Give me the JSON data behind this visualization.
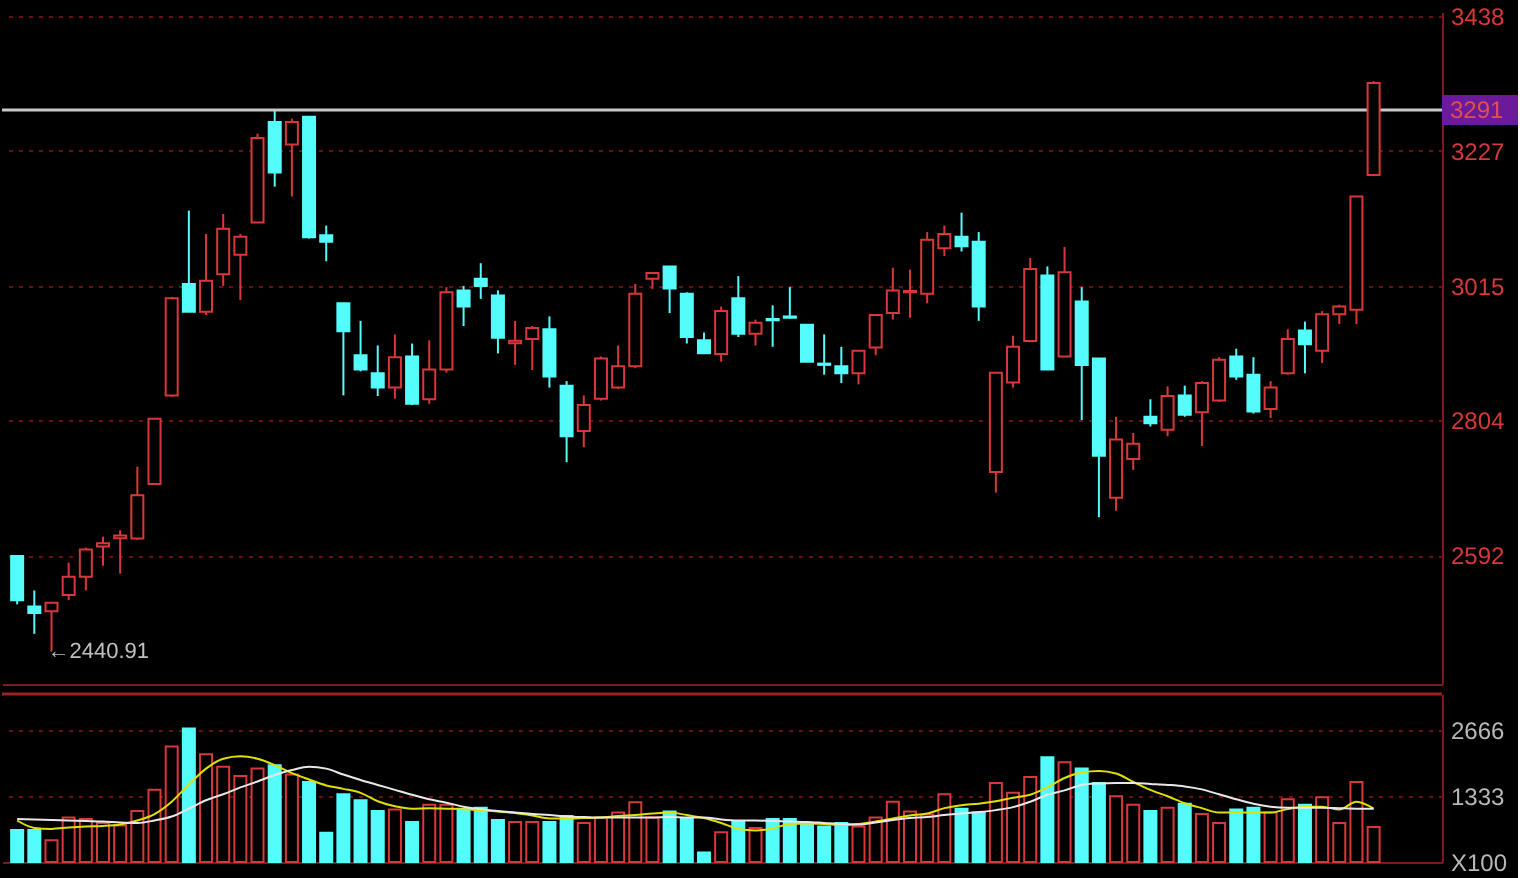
{
  "chart_data": [
    {
      "type": "candlestick",
      "categories": [
        null,
        null,
        null,
        null,
        null,
        null,
        null,
        null,
        null,
        null,
        null,
        null,
        null,
        null,
        null,
        null,
        null,
        null,
        null,
        null,
        null,
        null,
        null,
        null,
        null,
        null,
        null,
        null,
        null,
        null,
        null,
        null,
        null,
        null,
        null,
        null,
        null,
        null,
        null,
        null,
        null,
        null,
        null,
        null,
        null,
        null,
        null,
        null,
        null,
        null,
        null,
        null,
        null,
        null,
        null,
        null,
        null,
        null,
        null,
        null,
        null,
        null,
        null,
        null,
        null,
        null,
        null,
        null,
        null,
        null,
        null,
        null,
        null,
        null,
        null,
        null,
        null,
        null,
        null,
        null
      ],
      "ohlc": [
        [
          2590.8,
          2591,
          2515,
          2521.6
        ],
        [
          2511.5,
          2536.9,
          2468.8,
          2501.3
        ],
        [
          2504.3,
          2518,
          2440.91,
          2517.6
        ],
        [
          2529.8,
          2580.7,
          2521.6,
          2558.3
        ],
        [
          2558.3,
          2604.1,
          2536.9,
          2601.0
        ],
        [
          2606,
          2621.4,
          2575.6,
          2611
        ],
        [
          2619,
          2631.5,
          2563.3,
          2623
        ],
        [
          2618.3,
          2731.2,
          2616.3,
          2686.5
        ],
        [
          2703.8,
          2807,
          2703,
          2806.5
        ],
        [
          2843.1,
          2997.8,
          2841.1,
          2995.7
        ],
        [
          3018.1,
          3133.1,
          2974,
          2974.3
        ],
        [
          2974.3,
          3096.4,
          2969.3,
          3023.2
        ],
        [
          3033.3,
          3128,
          3015,
          3104.6
        ],
        [
          3063.9,
          3096.4,
          2992.7,
          3092.3
        ],
        [
          3114.7,
          3254.1,
          3114.7,
          3247
        ],
        [
          3272.4,
          3289.7,
          3170.7,
          3193.1
        ],
        [
          3236.8,
          3277.5,
          3155.4,
          3272.4
        ],
        [
          3280.6,
          3281,
          3089.3,
          3091.3
        ],
        [
          3094.4,
          3109.7,
          3053.7,
          3084.2
        ],
        [
          2987.6,
          2988,
          2843.1,
          2943.8
        ],
        [
          2906.2,
          2960.1,
          2880.8,
          2883.8
        ],
        [
          2877.7,
          2921.5,
          2842.1,
          2855.3
        ],
        [
          2855.3,
          2938.8,
          2838,
          2903.1
        ],
        [
          2904.2,
          2924.5,
          2827.9,
          2829.9
        ],
        [
          2837,
          2929.6,
          2829.9,
          2883.8
        ],
        [
          2883.8,
          3013,
          2878.7,
          3004.9
        ],
        [
          3007.9,
          3015,
          2952,
          2982.5
        ],
        [
          3026.2,
          3050.6,
          2994.7,
          3015
        ],
        [
          3000,
          3008,
          2909,
          2933.7
        ],
        [
          2925,
          2960.1,
          2891,
          2929
        ],
        [
          2931.6,
          2952,
          2883,
          2948.9
        ],
        [
          2946.9,
          2967.2,
          2855.3,
          2872.6
        ],
        [
          2858.4,
          2865.5,
          2738.3,
          2779
        ],
        [
          2787.2,
          2843.1,
          2761.8,
          2827.9
        ],
        [
          2838,
          2904.2,
          2835,
          2901.1
        ],
        [
          2855.3,
          2921.5,
          2853.3,
          2888.9
        ],
        [
          2888.9,
          3018.1,
          2885.8,
          3002.8
        ],
        [
          3026.2,
          3035.4,
          3010,
          3035.4
        ],
        [
          3045.6,
          3045.6,
          2972.3,
          3011
        ],
        [
          3002.8,
          3004.9,
          2924.5,
          2934.7
        ],
        [
          2929.6,
          2941.8,
          2909,
          2909.2
        ],
        [
          2908.2,
          2982.5,
          2896,
          2975.4
        ],
        [
          2995.7,
          3030.3,
          2934.7,
          2939.8
        ],
        [
          2939.8,
          2962.1,
          2921.5,
          2957.1
        ],
        [
          2963,
          2984.5,
          2919.4,
          2961
        ],
        [
          2967,
          3013,
          2964,
          2965
        ],
        [
          2954,
          2954,
          2896,
          2896
        ],
        [
          2893,
          2938.8,
          2875.6,
          2891
        ],
        [
          2889,
          2919.4,
          2862.5,
          2877.7
        ],
        [
          2877.7,
          2913.3,
          2860.4,
          2913.3
        ],
        [
          2918.4,
          2969.3,
          2906.2,
          2969.3
        ],
        [
          2972.3,
          3043.5,
          2962.1,
          3007.9
        ],
        [
          3005,
          3040.5,
          2965,
          3007
        ],
        [
          3002.8,
          3099.5,
          2987.6,
          3087.3
        ],
        [
          3074,
          3109.7,
          3061.9,
          3096.4
        ],
        [
          3092.3,
          3130,
          3069,
          3077.1
        ],
        [
          3084.2,
          3099.5,
          2960.1,
          2982.5
        ],
        [
          2723,
          2878.7,
          2690.5,
          2878.7
        ],
        [
          2863.5,
          2936.7,
          2855.3,
          2919.4
        ],
        [
          2928.6,
          3058.8,
          2926.5,
          3041.5
        ],
        [
          3031.3,
          3045.6,
          2883.8,
          2883.8
        ],
        [
          2904.2,
          3076.1,
          2904.2,
          3036.4
        ],
        [
          2990.6,
          3013,
          2804.5,
          2891
        ],
        [
          2901.1,
          2901.1,
          2651.9,
          2748.5
        ],
        [
          2682.4,
          2809.6,
          2662,
          2774
        ],
        [
          2743.4,
          2784.1,
          2726.1,
          2767
        ],
        [
          2809.6,
          2837,
          2794.3,
          2799.4
        ],
        [
          2789.2,
          2857.4,
          2779,
          2842.1
        ],
        [
          2843.1,
          2858.4,
          2809.6,
          2812.6
        ],
        [
          2816.7,
          2865.5,
          2763.8,
          2862.5
        ],
        [
          2835,
          2903.1,
          2833,
          2899
        ],
        [
          2904.2,
          2916.3,
          2867.5,
          2872.6
        ],
        [
          2875.7,
          2903.1,
          2814.6,
          2817.7
        ],
        [
          2821.8,
          2865.5,
          2807.5,
          2855.3
        ],
        [
          2877.7,
          2946.9,
          2875.7,
          2931.6
        ],
        [
          2944.9,
          2959,
          2877.7,
          2923.5
        ],
        [
          2913.3,
          2975.4,
          2894,
          2970.3
        ],
        [
          2970.3,
          2985.5,
          2955,
          2982.5
        ],
        [
          2977.4,
          3155.4,
          2955,
          3155.4
        ],
        [
          3189,
          3336.5,
          3189,
          3333.5
        ]
      ],
      "colors": [
        "#54fcfc",
        "#54fcfc",
        "#d8383a",
        "#d8383a",
        "#d8383a",
        "#d8383a",
        "#d8383a",
        "#d8383a",
        "#d8383a",
        "#d8383a",
        "#54fcfc",
        "#d8383a",
        "#d8383a",
        "#d8383a",
        "#d8383a",
        "#54fcfc",
        "#d8383a",
        "#54fcfc",
        "#54fcfc",
        "#54fcfc",
        "#54fcfc",
        "#54fcfc",
        "#d8383a",
        "#54fcfc",
        "#d8383a",
        "#d8383a",
        "#54fcfc",
        "#54fcfc",
        "#54fcfc",
        "#d8383a",
        "#d8383a",
        "#54fcfc",
        "#54fcfc",
        "#d8383a",
        "#d8383a",
        "#d8383a",
        "#d8383a",
        "#d8383a",
        "#54fcfc",
        "#54fcfc",
        "#54fcfc",
        "#d8383a",
        "#54fcfc",
        "#d8383a",
        "#54fcfc",
        "#54fcfc",
        "#54fcfc",
        "#54fcfc",
        "#54fcfc",
        "#d8383a",
        "#d8383a",
        "#d8383a",
        "#d8383a",
        "#d8383a",
        "#d8383a",
        "#54fcfc",
        "#54fcfc",
        "#d8383a",
        "#d8383a",
        "#d8383a",
        "#54fcfc",
        "#d8383a",
        "#54fcfc",
        "#54fcfc",
        "#d8383a",
        "#d8383a",
        "#54fcfc",
        "#d8383a",
        "#54fcfc",
        "#d8383a",
        "#d8383a",
        "#54fcfc",
        "#54fcfc",
        "#d8383a",
        "#d8383a",
        "#54fcfc",
        "#d8383a",
        "#d8383a",
        "#d8383a",
        "#d8383a"
      ],
      "ylim": [
        2390,
        3445
      ],
      "yticks": [
        2592,
        2804,
        3015,
        3227,
        3438
      ],
      "grid": "y",
      "tick_labels": "y",
      "ref_lines": [
        {
          "axis": "y",
          "value": 3291,
          "label": "3291",
          "color": "#c8c8c8"
        }
      ],
      "annotations": [
        "←2440.91"
      ]
    },
    {
      "type": "bar",
      "categories": [
        null,
        null,
        null,
        null,
        null,
        null,
        null,
        null,
        null,
        null,
        null,
        null,
        null,
        null,
        null,
        null,
        null,
        null,
        null,
        null,
        null,
        null,
        null,
        null,
        null,
        null,
        null,
        null,
        null,
        null,
        null,
        null,
        null,
        null,
        null,
        null,
        null,
        null,
        null,
        null,
        null,
        null,
        null,
        null,
        null,
        null,
        null,
        null,
        null,
        null,
        null,
        null,
        null,
        null,
        null,
        null,
        null,
        null,
        null,
        null,
        null,
        null,
        null,
        null,
        null,
        null,
        null,
        null,
        null,
        null,
        null,
        null,
        null,
        null,
        null,
        null,
        null,
        null,
        null,
        null
      ],
      "series": [
        {
          "type": "bar",
          "values": [
            650,
            650,
            440,
            900,
            870,
            790,
            740,
            1030,
            1460,
            2340,
            2700,
            2180,
            1930,
            1740,
            1890,
            1960,
            1770,
            1620,
            590,
            1370,
            1250,
            1030,
            1060,
            810,
            1160,
            1160,
            1080,
            1100,
            850,
            810,
            810,
            810,
            930,
            790,
            900,
            1000,
            1210,
            900,
            1020,
            870,
            190,
            600,
            810,
            690,
            870,
            870,
            790,
            720,
            790,
            720,
            900,
            1220,
            1020,
            960,
            1370,
            1080,
            1000,
            1600,
            1400,
            1720,
            2120,
            2020,
            1890,
            1600,
            1330,
            1160,
            1030,
            1100,
            1180,
            970,
            790,
            1060,
            1100,
            1000,
            1270,
            1160,
            1310,
            790,
            1620,
            710
          ],
          "colors": [
            "#54fcfc",
            "#54fcfc",
            "#d8383a",
            "#d8383a",
            "#d8383a",
            "#d8383a",
            "#d8383a",
            "#d8383a",
            "#d8383a",
            "#d8383a",
            "#54fcfc",
            "#d8383a",
            "#d8383a",
            "#d8383a",
            "#d8383a",
            "#54fcfc",
            "#d8383a",
            "#54fcfc",
            "#54fcfc",
            "#54fcfc",
            "#54fcfc",
            "#54fcfc",
            "#d8383a",
            "#54fcfc",
            "#d8383a",
            "#d8383a",
            "#54fcfc",
            "#54fcfc",
            "#54fcfc",
            "#d8383a",
            "#d8383a",
            "#54fcfc",
            "#54fcfc",
            "#d8383a",
            "#d8383a",
            "#d8383a",
            "#d8383a",
            "#d8383a",
            "#54fcfc",
            "#54fcfc",
            "#54fcfc",
            "#d8383a",
            "#54fcfc",
            "#d8383a",
            "#54fcfc",
            "#54fcfc",
            "#54fcfc",
            "#54fcfc",
            "#54fcfc",
            "#d8383a",
            "#d8383a",
            "#d8383a",
            "#d8383a",
            "#d8383a",
            "#d8383a",
            "#54fcfc",
            "#54fcfc",
            "#d8383a",
            "#d8383a",
            "#d8383a",
            "#54fcfc",
            "#d8383a",
            "#54fcfc",
            "#54fcfc",
            "#d8383a",
            "#d8383a",
            "#54fcfc",
            "#d8383a",
            "#54fcfc",
            "#d8383a",
            "#d8383a",
            "#54fcfc",
            "#54fcfc",
            "#d8383a",
            "#d8383a",
            "#54fcfc",
            "#d8383a",
            "#d8383a",
            "#d8383a",
            "#d8383a"
          ]
        },
        {
          "type": "line",
          "color": "#e0e000",
          "values": [
            840,
            690,
            670,
            700,
            720,
            730,
            760,
            840,
            970,
            1220,
            1570,
            1890,
            2090,
            2140,
            2090,
            1960,
            1800,
            1670,
            1550,
            1480,
            1400,
            1230,
            1130,
            1080,
            1090,
            1080,
            1070,
            1050,
            1020,
            990,
            940,
            880,
            880,
            890,
            900,
            930,
            950,
            980,
            1000,
            950,
            890,
            790,
            670,
            640,
            680,
            770,
            780,
            770,
            750,
            770,
            820,
            880,
            940,
            980,
            1090,
            1150,
            1180,
            1230,
            1300,
            1360,
            1510,
            1700,
            1810,
            1840,
            1790,
            1620,
            1460,
            1330,
            1190,
            1090,
            1000,
            1000,
            1000,
            1000,
            1070,
            1120,
            1120,
            1060,
            1220,
            1080
          ]
        },
        {
          "type": "line",
          "color": "#e8e8e8",
          "values": [
            870,
            860,
            850,
            840,
            830,
            820,
            800,
            790,
            840,
            920,
            1080,
            1250,
            1370,
            1510,
            1630,
            1760,
            1860,
            1930,
            1890,
            1770,
            1660,
            1560,
            1460,
            1360,
            1270,
            1200,
            1120,
            1070,
            1030,
            1000,
            970,
            950,
            920,
            910,
            900,
            900,
            900,
            900,
            910,
            900,
            900,
            860,
            840,
            840,
            830,
            820,
            810,
            790,
            770,
            760,
            800,
            850,
            890,
            910,
            950,
            980,
            1010,
            1050,
            1110,
            1220,
            1360,
            1450,
            1560,
            1590,
            1600,
            1600,
            1580,
            1560,
            1530,
            1470,
            1370,
            1270,
            1180,
            1120,
            1100,
            1100,
            1100,
            1090,
            1080,
            1080
          ]
        }
      ],
      "ylim": [
        0,
        3400
      ],
      "yticks": [
        {
          "value": 0,
          "label": "X100"
        },
        1333,
        2666
      ],
      "grid": "y",
      "tick_labels": "y"
    }
  ]
}
